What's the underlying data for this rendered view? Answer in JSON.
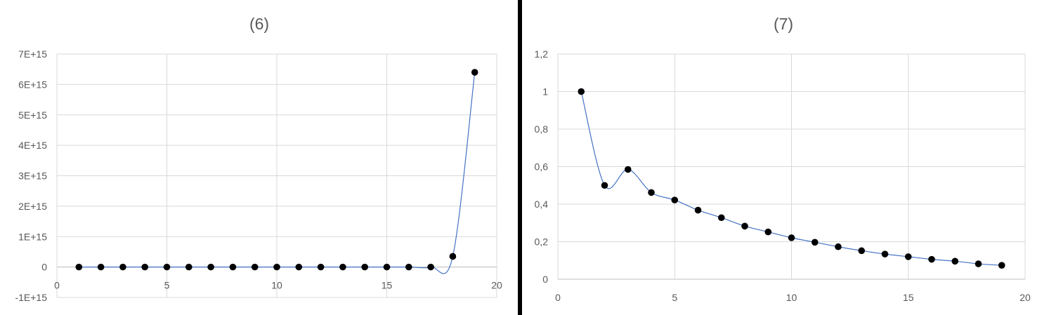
{
  "colors": {
    "line": "#4472c4",
    "marker": "#000000",
    "grid": "#d9d9d9",
    "text": "#595959",
    "divider": "#000000"
  },
  "chart_data": [
    {
      "type": "scatter",
      "title": "(6)",
      "xlim": [
        0,
        20
      ],
      "ylim": [
        -1000000000000000.0,
        7000000000000000.0
      ],
      "x_ticks": [
        0,
        5,
        10,
        15,
        20
      ],
      "x_tick_labels": [
        "0",
        "5",
        "10",
        "15",
        "20"
      ],
      "y_ticks": [
        -1000000000000000.0,
        0,
        1000000000000000.0,
        2000000000000000.0,
        3000000000000000.0,
        4000000000000000.0,
        5000000000000000.0,
        6000000000000000.0,
        7000000000000000.0
      ],
      "y_tick_labels": [
        "-1E+15",
        "0",
        "1E+15",
        "2E+15",
        "3E+15",
        "4E+15",
        "5E+15",
        "6E+15",
        "7E+15"
      ],
      "x_axis_at": 0,
      "grid": true,
      "smooth_line": true,
      "markers": true,
      "x": [
        1,
        2,
        3,
        4,
        5,
        6,
        7,
        8,
        9,
        10,
        11,
        12,
        13,
        14,
        15,
        16,
        17,
        18,
        19
      ],
      "y": [
        0,
        0,
        0,
        0,
        0,
        0,
        0,
        0,
        0,
        0,
        0,
        0,
        0,
        0,
        0,
        0,
        0,
        350000000000000.0,
        6400000000000000.0
      ]
    },
    {
      "type": "scatter",
      "title": "(7)",
      "xlim": [
        0,
        20
      ],
      "ylim": [
        0,
        1.2
      ],
      "x_ticks": [
        0,
        5,
        10,
        15,
        20
      ],
      "x_tick_labels": [
        "0",
        "5",
        "10",
        "15",
        "20"
      ],
      "y_ticks": [
        0,
        0.2,
        0.4,
        0.6,
        0.8,
        1,
        1.2
      ],
      "y_tick_labels": [
        "0",
        "0,2",
        "0,4",
        "0,6",
        "0,8",
        "1",
        "1,2"
      ],
      "x_axis_at": 0,
      "grid": true,
      "smooth_line": true,
      "markers": true,
      "x": [
        1,
        2,
        3,
        4,
        5,
        6,
        7,
        8,
        9,
        10,
        11,
        12,
        13,
        14,
        15,
        16,
        17,
        18,
        19
      ],
      "y": [
        1,
        0.5,
        0.585,
        0.462,
        0.422,
        0.368,
        0.328,
        0.283,
        0.252,
        0.221,
        0.197,
        0.173,
        0.152,
        0.134,
        0.12,
        0.106,
        0.096,
        0.082,
        0.074
      ]
    }
  ]
}
